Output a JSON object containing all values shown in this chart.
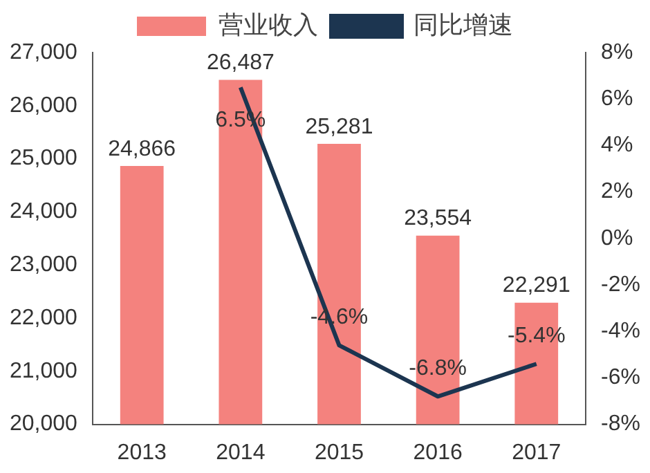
{
  "chart_data": {
    "type": "bar",
    "categories": [
      "2013",
      "2014",
      "2015",
      "2016",
      "2017"
    ],
    "series": [
      {
        "name": "营业收入",
        "color": "#f4827e",
        "values": [
          24866,
          26487,
          25281,
          23554,
          22291
        ],
        "value_labels": [
          "24,866",
          "26,487",
          "25,281",
          "23,554",
          "22,291"
        ]
      },
      {
        "name": "同比增速",
        "type": "line",
        "axis": "y2",
        "color": "#1c3550",
        "values": [
          null,
          6.5,
          -4.6,
          -6.8,
          -5.4
        ],
        "value_labels": [
          null,
          "6.5%",
          "-4.6%",
          "-6.8%",
          "-5.4%"
        ]
      }
    ],
    "ylim": [
      20000,
      27000
    ],
    "yticks": [
      {
        "value": 20000,
        "label": "20,000"
      },
      {
        "value": 21000,
        "label": "21,000"
      },
      {
        "value": 22000,
        "label": "22,000"
      },
      {
        "value": 23000,
        "label": "23,000"
      },
      {
        "value": 24000,
        "label": "24,000"
      },
      {
        "value": 25000,
        "label": "25,000"
      },
      {
        "value": 26000,
        "label": "26,000"
      },
      {
        "value": 27000,
        "label": "27,000"
      }
    ],
    "y2lim": [
      -8,
      8
    ],
    "y2ticks": [
      {
        "value": -8,
        "label": "-8%"
      },
      {
        "value": -6,
        "label": "-6%"
      },
      {
        "value": -4,
        "label": "-4%"
      },
      {
        "value": -2,
        "label": "-2%"
      },
      {
        "value": 0,
        "label": "0%"
      },
      {
        "value": 2,
        "label": "2%"
      },
      {
        "value": 4,
        "label": "4%"
      },
      {
        "value": 6,
        "label": "6%"
      },
      {
        "value": 8,
        "label": "8%"
      }
    ],
    "grid": false,
    "legend": "top",
    "marker": "none",
    "line_style": "solid"
  }
}
